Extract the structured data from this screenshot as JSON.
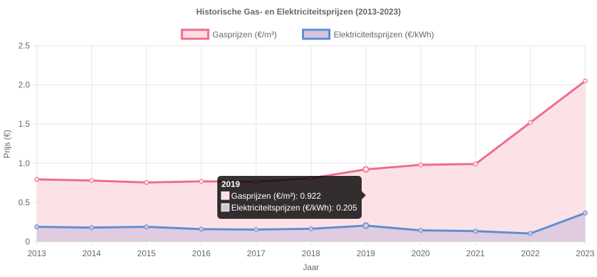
{
  "chart_data": {
    "type": "line",
    "title": "Historische Gas- en Elektriciteitsprijzen (2013-2023)",
    "xlabel": "Jaar",
    "ylabel": "Prijs (€)",
    "categories": [
      "2013",
      "2014",
      "2015",
      "2016",
      "2017",
      "2018",
      "2019",
      "2020",
      "2021",
      "2022",
      "2023"
    ],
    "ylim": [
      0,
      2.5
    ],
    "yticks": [
      0,
      0.5,
      1.0,
      1.5,
      2.0,
      2.5
    ],
    "ytick_labels": [
      "0",
      "0.5",
      "1.0",
      "1.5",
      "2.0",
      "2.5"
    ],
    "grid": true,
    "legend_position": "top-center",
    "area_fill": true,
    "series": [
      {
        "name": "Gasprijzen (€/m³)",
        "color": "#f06b8c",
        "fill": "#fcdde3",
        "values": [
          0.795,
          0.78,
          0.755,
          0.77,
          0.765,
          0.81,
          0.922,
          0.98,
          0.99,
          1.52,
          2.05
        ]
      },
      {
        "name": "Elektriciteitsprijzen (€/kWh)",
        "color": "#5b8fd6",
        "fill": "#d6c4dd",
        "values": [
          0.19,
          0.18,
          0.19,
          0.16,
          0.155,
          0.165,
          0.205,
          0.145,
          0.135,
          0.105,
          0.365
        ]
      }
    ],
    "tooltip": {
      "title": "2019",
      "lines": [
        "Gasprijzen (€/m³): 0.922",
        "Elektriciteitsprijzen (€/kWh): 0.205"
      ]
    }
  }
}
